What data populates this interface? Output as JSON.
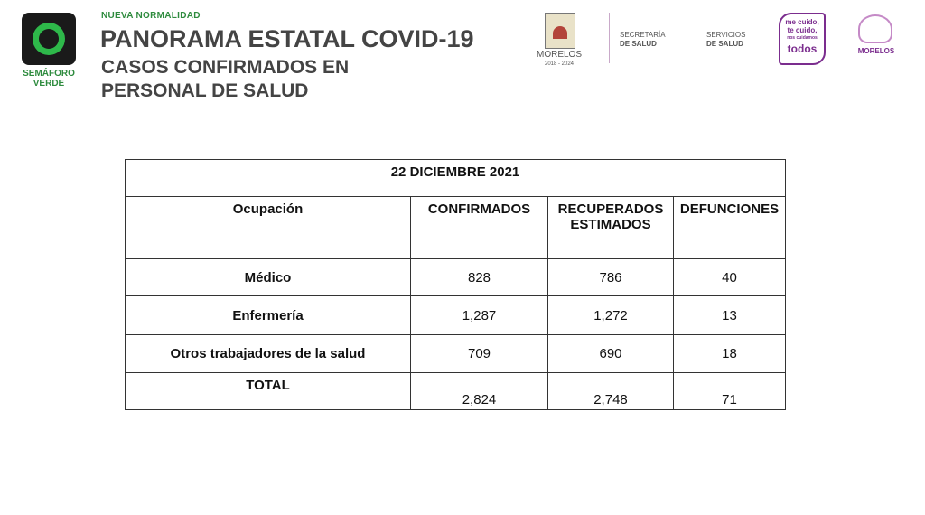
{
  "header": {
    "kicker": "NUEVA NORMALIDAD",
    "title": "PANORAMA ESTATAL COVID-19",
    "subtitle_lines": [
      "CASOS CONFIRMADOS EN",
      "PERSONAL DE SALUD"
    ],
    "semaforo": [
      "SEMÁFORO",
      "VERDE"
    ]
  },
  "logos": {
    "morelos": [
      "MORELOS",
      "2018 - 2024"
    ],
    "secretaria": [
      "SECRETARÍA",
      "DE SALUD"
    ],
    "servicios": [
      "SERVICIOS",
      "DE SALUD"
    ],
    "campaign": [
      "me cuido,",
      "te cuido,",
      "nos cuidamos",
      "todos"
    ],
    "morelos2": "MORELOS"
  },
  "table": {
    "date": "22 DICIEMBRE 2021",
    "columns": [
      "Ocupación",
      "CONFIRMADOS",
      "RECUPERADOS ESTIMADOS",
      "DEFUNCIONES"
    ],
    "rows": [
      [
        "Médico",
        "828",
        "786",
        "40"
      ],
      [
        "Enfermería",
        "1,287",
        "1,272",
        "13"
      ],
      [
        "Otros trabajadores de la salud",
        "709",
        "690",
        "18"
      ]
    ],
    "total": [
      "TOTAL",
      "2,824",
      "2,748",
      "71"
    ]
  }
}
